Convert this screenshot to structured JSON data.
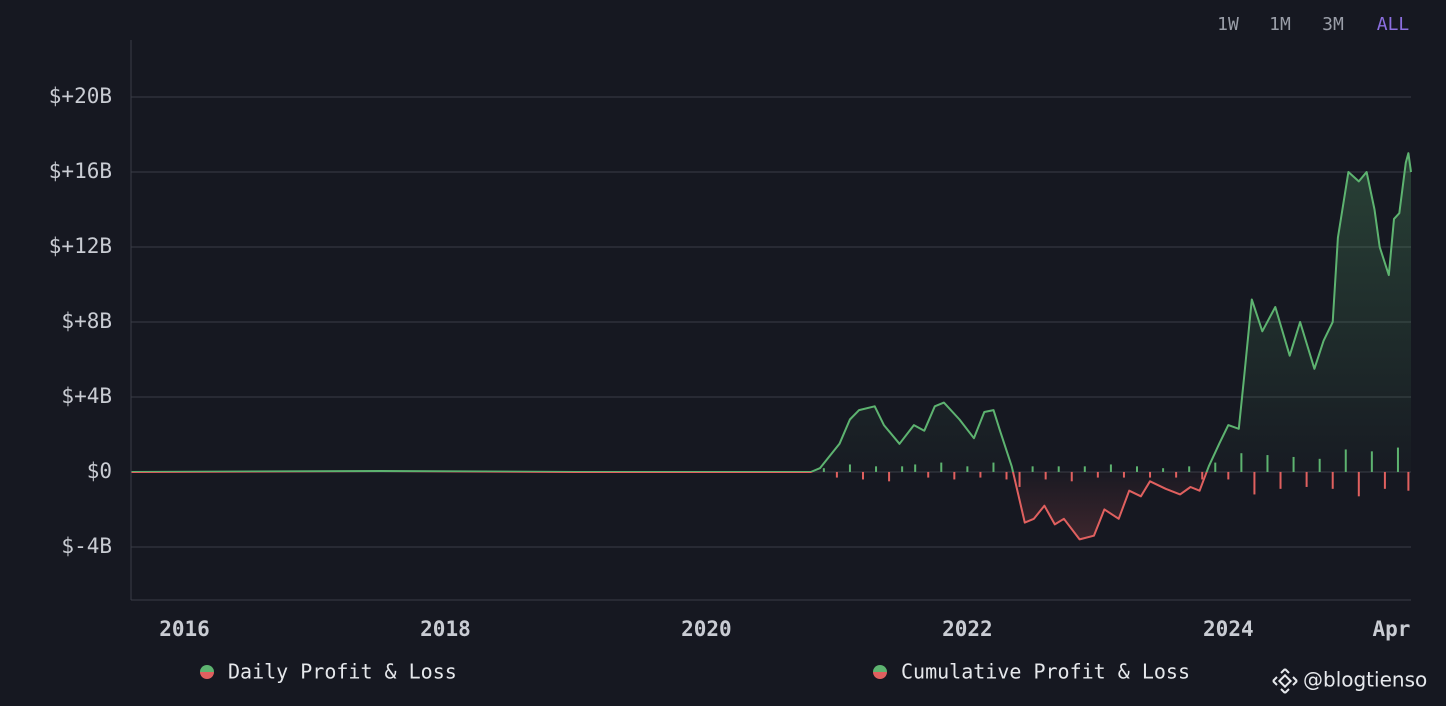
{
  "range_buttons": [
    "1W",
    "1M",
    "3M",
    "ALL"
  ],
  "active_range": 3,
  "watermark": "@blogtienso",
  "chart_data": {
    "type": "line",
    "xlim": [
      2015.59,
      2025.4
    ],
    "ylim": [
      -6.83,
      23.04
    ],
    "xticks": [
      2016,
      2018,
      2020,
      2022,
      2024,
      {
        "value": 2025.25,
        "label": "Apr"
      }
    ],
    "yticks": [
      {
        "value": -4,
        "label": "$-4B"
      },
      {
        "value": 0,
        "label": "$0"
      },
      {
        "value": 4,
        "label": "$+4B"
      },
      {
        "value": 8,
        "label": "$+8B"
      },
      {
        "value": 12,
        "label": "$+12B"
      },
      {
        "value": 16,
        "label": "$+16B"
      },
      {
        "value": 20,
        "label": "$+20B"
      }
    ],
    "grid": true,
    "series": [
      {
        "name": "Daily Profit & Loss",
        "kind": "bar",
        "color": "#5db370",
        "negative_color": "#e0605f",
        "x": [
          2020.9,
          2021.0,
          2021.1,
          2021.2,
          2021.3,
          2021.4,
          2021.5,
          2021.6,
          2021.7,
          2021.8,
          2021.9,
          2022.0,
          2022.1,
          2022.2,
          2022.3,
          2022.4,
          2022.5,
          2022.6,
          2022.7,
          2022.8,
          2022.9,
          2023.0,
          2023.1,
          2023.2,
          2023.3,
          2023.4,
          2023.5,
          2023.6,
          2023.7,
          2023.8,
          2023.9,
          2024.0,
          2024.1,
          2024.2,
          2024.3,
          2024.4,
          2024.5,
          2024.6,
          2024.7,
          2024.8,
          2024.9,
          2025.0,
          2025.1,
          2025.2,
          2025.3,
          2025.38
        ],
        "values": [
          0.2,
          -0.3,
          0.4,
          -0.4,
          0.3,
          -0.5,
          0.3,
          0.4,
          -0.3,
          0.5,
          -0.4,
          0.3,
          -0.3,
          0.5,
          -0.4,
          -0.8,
          0.3,
          -0.4,
          0.3,
          -0.5,
          0.3,
          -0.3,
          0.4,
          -0.3,
          0.3,
          -0.3,
          0.2,
          -0.3,
          0.3,
          -0.4,
          0.5,
          -0.4,
          1.0,
          -1.2,
          0.9,
          -0.9,
          0.8,
          -0.8,
          0.7,
          -0.9,
          1.2,
          -1.3,
          1.1,
          -0.9,
          1.3,
          -1.0
        ]
      },
      {
        "name": "Cumulative Profit & Loss",
        "kind": "line",
        "color": "#5db370",
        "negative_color": "#e0605f",
        "x": [
          2015.59,
          2017.5,
          2019.0,
          2020.8,
          2020.87,
          2021.02,
          2021.1,
          2021.17,
          2021.29,
          2021.36,
          2021.48,
          2021.59,
          2021.67,
          2021.75,
          2021.82,
          2021.94,
          2022.05,
          2022.13,
          2022.2,
          2022.25,
          2022.34,
          2022.44,
          2022.51,
          2022.59,
          2022.67,
          2022.74,
          2022.86,
          2022.97,
          2023.05,
          2023.16,
          2023.24,
          2023.33,
          2023.4,
          2023.52,
          2023.63,
          2023.71,
          2023.78,
          2023.85,
          2023.93,
          2024.0,
          2024.08,
          2024.12,
          2024.18,
          2024.26,
          2024.36,
          2024.47,
          2024.55,
          2024.66,
          2024.73,
          2024.8,
          2024.84,
          2024.92,
          2025.0,
          2025.06,
          2025.12,
          2025.16,
          2025.23,
          2025.27,
          2025.31,
          2025.36,
          2025.38,
          2025.4
        ],
        "values": [
          0,
          0.05,
          0,
          0,
          0.2,
          1.5,
          2.8,
          3.3,
          3.5,
          2.5,
          1.5,
          2.5,
          2.2,
          3.5,
          3.7,
          2.8,
          1.8,
          3.2,
          3.3,
          2.2,
          0.3,
          -2.7,
          -2.5,
          -1.8,
          -2.8,
          -2.5,
          -3.6,
          -3.4,
          -2.0,
          -2.5,
          -1.0,
          -1.3,
          -0.5,
          -0.9,
          -1.2,
          -0.8,
          -1.0,
          0.3,
          1.5,
          2.5,
          2.3,
          5.0,
          9.2,
          7.5,
          8.8,
          6.2,
          8.0,
          5.5,
          7.0,
          8.0,
          12.5,
          16.0,
          15.5,
          16.0,
          14.0,
          12.0,
          10.5,
          13.5,
          13.8,
          16.5,
          17.0,
          16.0
        ]
      }
    ]
  }
}
